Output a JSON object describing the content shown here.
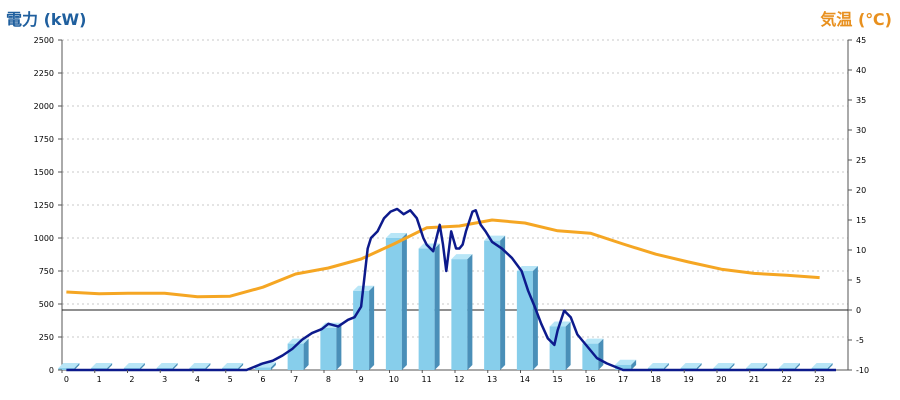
{
  "chart_data": {
    "type": "bar",
    "ylabel_left": "電力 (kW)",
    "ylabel_right": "気温 (℃)",
    "categories": [
      "0",
      "1",
      "2",
      "3",
      "4",
      "5",
      "6",
      "7",
      "8",
      "9",
      "10",
      "11",
      "12",
      "13",
      "14",
      "15",
      "16",
      "17",
      "18",
      "19",
      "20",
      "21",
      "22",
      "23"
    ],
    "ylim_left": [
      0,
      2500
    ],
    "yticks_left": [
      0,
      250,
      500,
      750,
      1000,
      1250,
      1500,
      1750,
      2000,
      2250,
      2500
    ],
    "ylim_right": [
      -10,
      45
    ],
    "yticks_right": [
      -10,
      -5,
      0,
      5,
      10,
      15,
      20,
      25,
      30,
      35,
      40,
      45
    ],
    "grid": true,
    "zero_line_right": 0,
    "colors": {
      "bar": "#87ceeb",
      "bar_side": "#4a8fb8",
      "bar_top": "#b8e6f7",
      "power_line": "#0d1a8c",
      "temp_line": "#f5a623",
      "left_axis_title": "#1f5f9e",
      "right_axis_title": "#e8901e",
      "grid": "#c8c8c8"
    },
    "series": [
      {
        "kind": "bar",
        "axis": "left",
        "values": [
          0,
          0,
          0,
          0,
          0,
          0,
          20,
          200,
          320,
          600,
          1000,
          920,
          840,
          980,
          750,
          330,
          200,
          40,
          0,
          0,
          0,
          0,
          0,
          0
        ]
      },
      {
        "kind": "line",
        "axis": "right",
        "values": [
          3.0,
          2.7,
          2.8,
          2.8,
          2.2,
          2.3,
          3.8,
          6.0,
          7.0,
          8.5,
          11.0,
          13.7,
          14.0,
          15.0,
          14.5,
          13.2,
          12.8,
          11.0,
          9.3,
          8.0,
          6.8,
          6.1,
          5.8,
          5.4
        ]
      },
      {
        "kind": "line",
        "axis": "left",
        "x": [
          0,
          5.5,
          6.0,
          6.3,
          6.6,
          6.9,
          7.2,
          7.5,
          7.8,
          8.0,
          8.3,
          8.6,
          8.8,
          9.0,
          9.1,
          9.2,
          9.3,
          9.5,
          9.7,
          9.9,
          10.1,
          10.3,
          10.5,
          10.7,
          10.9,
          11.0,
          11.2,
          11.4,
          11.5,
          11.6,
          11.75,
          11.9,
          12.0,
          12.1,
          12.2,
          12.4,
          12.5,
          12.65,
          12.8,
          12.9,
          13.0,
          13.3,
          13.6,
          13.9,
          14.1,
          14.3,
          14.5,
          14.7,
          14.9,
          15.0,
          15.2,
          15.4,
          15.6,
          15.9,
          16.2,
          16.5,
          16.8,
          17.0,
          23.5
        ],
        "values": [
          0,
          0,
          50,
          70,
          110,
          160,
          230,
          280,
          310,
          350,
          330,
          380,
          400,
          480,
          700,
          920,
          1000,
          1050,
          1150,
          1200,
          1220,
          1180,
          1210,
          1150,
          1000,
          950,
          900,
          1100,
          950,
          750,
          1050,
          920,
          920,
          950,
          1050,
          1200,
          1210,
          1100,
          1050,
          1010,
          970,
          920,
          850,
          750,
          600,
          480,
          350,
          240,
          190,
          300,
          450,
          400,
          270,
          180,
          90,
          50,
          20,
          0,
          0
        ]
      }
    ]
  }
}
